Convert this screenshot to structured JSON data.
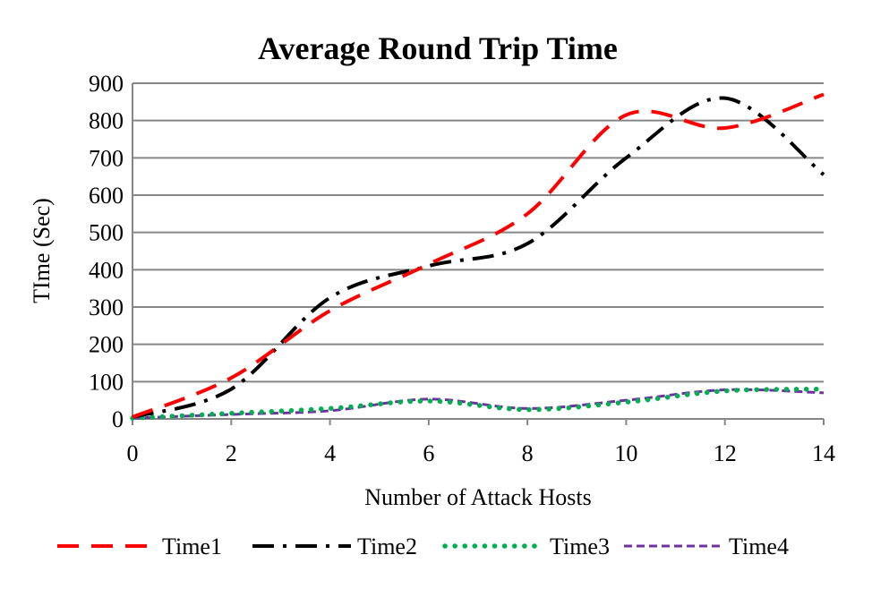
{
  "chart_data": {
    "type": "line",
    "title": "Average Round Trip Time",
    "xlabel": "Number of Attack Hosts",
    "ylabel": "TIme (Sec)",
    "xlim": [
      0,
      14
    ],
    "ylim": [
      0,
      900
    ],
    "xticks": [
      "0",
      "2",
      "4",
      "6",
      "8",
      "10",
      "12",
      "14"
    ],
    "yticks": [
      "0",
      "100",
      "200",
      "300",
      "400",
      "500",
      "600",
      "700",
      "800",
      "900"
    ],
    "grid": "horizontal",
    "legend_position": "bottom",
    "x": [
      0,
      2,
      4,
      6,
      8,
      10,
      12,
      14
    ],
    "series": [
      {
        "name": "Time1",
        "color": "#ff0000",
        "dash": "long-dash",
        "values": [
          5,
          110,
          290,
          415,
          550,
          815,
          780,
          870
        ]
      },
      {
        "name": "Time2",
        "color": "#000000",
        "dash": "long-dash-dot",
        "values": [
          5,
          80,
          325,
          410,
          470,
          700,
          860,
          655
        ]
      },
      {
        "name": "Time3",
        "color": "#00b050",
        "dash": "round-dot",
        "values": [
          2,
          15,
          28,
          48,
          25,
          45,
          75,
          80
        ]
      },
      {
        "name": "Time4",
        "color": "#7030a0",
        "dash": "short-dash",
        "values": [
          2,
          12,
          22,
          53,
          28,
          50,
          78,
          70
        ]
      }
    ]
  }
}
